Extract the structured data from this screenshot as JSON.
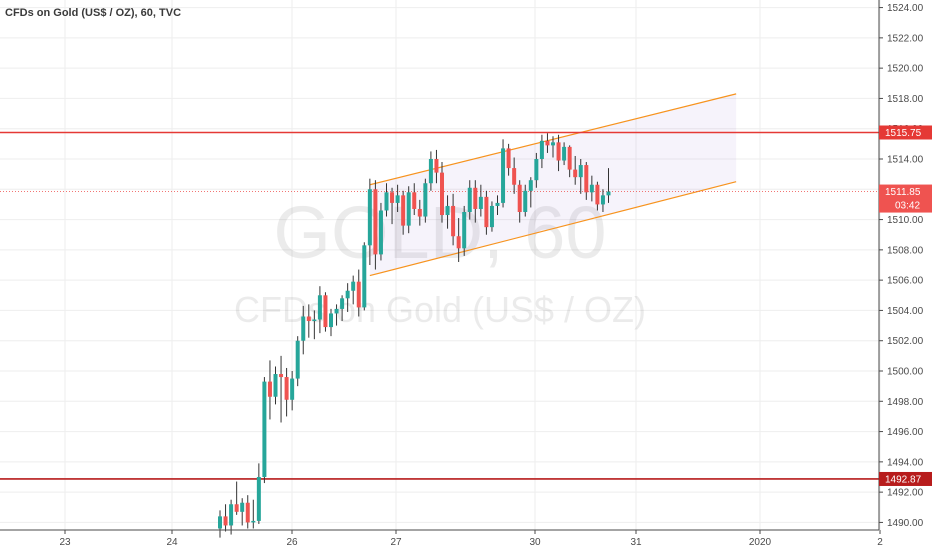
{
  "title": "CFDs on Gold (US$ / OZ), 60, TVC",
  "watermark": {
    "symbol": "GOLD, 60",
    "description": "CFDs on Gold (US$ / OZ)"
  },
  "colors": {
    "up": "#26a69a",
    "down": "#ef5350",
    "wick": "#333333",
    "channel": "#f7931e",
    "resistance": "#e53935",
    "support": "#b71c1c",
    "price_tag": "#ef5350",
    "grid": "#eeeeee",
    "axis": "#4a4a4a"
  },
  "price_scale": {
    "ticks": [
      "1524.00",
      "1522.00",
      "1520.00",
      "1518.00",
      "1516.00",
      "1514.00",
      "1512.00",
      "1510.00",
      "1508.00",
      "1506.00",
      "1504.00",
      "1502.00",
      "1500.00",
      "1498.00",
      "1496.00",
      "1494.00",
      "1492.00",
      "1490.00"
    ],
    "min": 1489.5,
    "max": 1524.5
  },
  "time_scale": {
    "labels": [
      "23",
      "24",
      "26",
      "27",
      "30",
      "31",
      "2020",
      "2"
    ]
  },
  "lines": {
    "resistance": {
      "price": 1515.75,
      "label": "1515.75"
    },
    "support": {
      "price": 1492.87,
      "label": "1492.87"
    },
    "current": {
      "price": 1511.85,
      "label": "1511.85",
      "countdown": "03:42"
    }
  },
  "chart_data": {
    "type": "candlestick",
    "title": "CFDs on Gold (US$ / OZ), 60, TVC",
    "interval": "60",
    "ylim": [
      1489.5,
      1524.5
    ],
    "x_tick_labels": [
      "23",
      "24",
      "26",
      "27",
      "30",
      "31",
      "2020",
      "2"
    ],
    "candles": [
      [
        1489.6,
        1490.8,
        1489.0,
        1490.4
      ],
      [
        1490.4,
        1491.2,
        1489.4,
        1489.8
      ],
      [
        1489.8,
        1491.5,
        1489.2,
        1491.2
      ],
      [
        1491.2,
        1492.7,
        1490.5,
        1490.7
      ],
      [
        1490.7,
        1491.6,
        1489.8,
        1491.3
      ],
      [
        1491.3,
        1491.8,
        1489.6,
        1490.0
      ],
      [
        1490.0,
        1491.5,
        1489.6,
        1490.1
      ],
      [
        1490.1,
        1493.9,
        1489.9,
        1493.0
      ],
      [
        1493.0,
        1499.6,
        1492.6,
        1499.3
      ],
      [
        1499.3,
        1500.7,
        1496.8,
        1498.3
      ],
      [
        1498.3,
        1500.3,
        1497.8,
        1499.8
      ],
      [
        1499.8,
        1501.0,
        1496.6,
        1499.6
      ],
      [
        1499.6,
        1500.2,
        1497.0,
        1498.1
      ],
      [
        1498.1,
        1500.0,
        1497.4,
        1499.5
      ],
      [
        1499.5,
        1502.3,
        1499.0,
        1502.0
      ],
      [
        1502.0,
        1504.3,
        1501.1,
        1503.6
      ],
      [
        1503.6,
        1504.4,
        1502.2,
        1503.3
      ],
      [
        1503.3,
        1504.0,
        1502.1,
        1503.4
      ],
      [
        1503.4,
        1505.6,
        1502.5,
        1505.0
      ],
      [
        1505.0,
        1505.2,
        1502.6,
        1502.9
      ],
      [
        1502.9,
        1504.1,
        1502.3,
        1503.8
      ],
      [
        1503.8,
        1504.4,
        1503.0,
        1504.1
      ],
      [
        1504.1,
        1505.0,
        1503.3,
        1504.8
      ],
      [
        1504.8,
        1505.8,
        1503.9,
        1505.3
      ],
      [
        1505.3,
        1506.3,
        1504.4,
        1505.9
      ],
      [
        1505.9,
        1506.7,
        1503.6,
        1504.2
      ],
      [
        1504.2,
        1508.5,
        1504.0,
        1508.3
      ],
      [
        1508.3,
        1512.7,
        1507.0,
        1512.0
      ],
      [
        1512.0,
        1512.6,
        1506.7,
        1507.7
      ],
      [
        1507.7,
        1511.1,
        1507.3,
        1510.6
      ],
      [
        1510.6,
        1512.4,
        1510.2,
        1511.8
      ],
      [
        1511.8,
        1512.1,
        1509.7,
        1511.1
      ],
      [
        1511.1,
        1512.3,
        1510.5,
        1511.6
      ],
      [
        1511.6,
        1511.9,
        1509.0,
        1509.6
      ],
      [
        1509.6,
        1512.2,
        1509.1,
        1511.8
      ],
      [
        1511.8,
        1512.4,
        1510.3,
        1510.7
      ],
      [
        1510.7,
        1511.3,
        1509.6,
        1510.2
      ],
      [
        1510.2,
        1512.7,
        1509.8,
        1512.4
      ],
      [
        1512.4,
        1514.5,
        1511.9,
        1514.0
      ],
      [
        1514.0,
        1514.6,
        1512.4,
        1513.1
      ],
      [
        1513.1,
        1513.8,
        1509.8,
        1510.3
      ],
      [
        1510.3,
        1511.6,
        1509.4,
        1510.9
      ],
      [
        1510.9,
        1511.7,
        1508.3,
        1508.9
      ],
      [
        1508.9,
        1510.1,
        1507.2,
        1508.1
      ],
      [
        1508.1,
        1510.9,
        1507.6,
        1510.5
      ],
      [
        1510.5,
        1512.6,
        1510.0,
        1512.1
      ],
      [
        1512.1,
        1512.6,
        1509.8,
        1510.7
      ],
      [
        1510.7,
        1512.3,
        1510.2,
        1511.5
      ],
      [
        1511.5,
        1511.9,
        1509.0,
        1509.5
      ],
      [
        1509.5,
        1511.2,
        1509.2,
        1510.9
      ],
      [
        1510.9,
        1511.6,
        1510.3,
        1511.1
      ],
      [
        1511.1,
        1515.3,
        1510.8,
        1514.7
      ],
      [
        1514.7,
        1515.0,
        1512.9,
        1513.4
      ],
      [
        1513.4,
        1514.1,
        1511.7,
        1512.3
      ],
      [
        1512.3,
        1512.6,
        1509.8,
        1510.5
      ],
      [
        1510.5,
        1512.3,
        1510.2,
        1511.9
      ],
      [
        1511.9,
        1512.8,
        1510.8,
        1512.6
      ],
      [
        1512.6,
        1514.4,
        1512.1,
        1514.0
      ],
      [
        1514.0,
        1515.6,
        1513.4,
        1515.2
      ],
      [
        1515.2,
        1515.7,
        1514.4,
        1514.9
      ],
      [
        1514.9,
        1515.5,
        1514.1,
        1515.1
      ],
      [
        1515.1,
        1515.6,
        1513.2,
        1513.9
      ],
      [
        1513.9,
        1515.1,
        1513.6,
        1514.8
      ],
      [
        1514.8,
        1514.9,
        1512.8,
        1513.3
      ],
      [
        1513.3,
        1514.2,
        1512.3,
        1512.8
      ],
      [
        1512.8,
        1514.0,
        1511.7,
        1513.6
      ],
      [
        1513.6,
        1513.8,
        1511.3,
        1511.8
      ],
      [
        1511.8,
        1512.9,
        1511.2,
        1512.3
      ],
      [
        1512.3,
        1512.5,
        1510.6,
        1511.0
      ],
      [
        1511.0,
        1512.0,
        1510.5,
        1511.6
      ],
      [
        1511.6,
        1513.4,
        1511.1,
        1511.85
      ]
    ],
    "channel": {
      "upper": [
        {
          "x": 27.0,
          "price": 1512.3
        },
        {
          "x": 93.0,
          "price": 1518.3
        }
      ],
      "lower": [
        {
          "x": 27.0,
          "price": 1506.3
        },
        {
          "x": 93.0,
          "price": 1512.5
        }
      ]
    }
  }
}
